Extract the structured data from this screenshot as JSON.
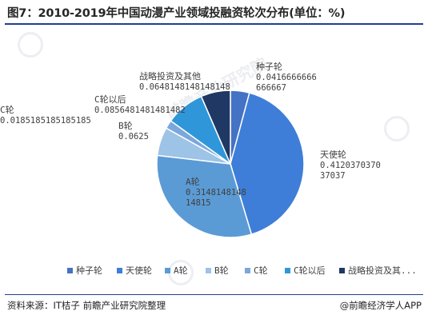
{
  "title": "图7：2010-2019年中国动漫产业领域投融资轮次分布(单位：%)",
  "footer": {
    "source": "资料来源：IT桔子 前瞻产业研究院整理",
    "brand": "@前瞻经济学人APP"
  },
  "watermark": {
    "text": "前瞻产业研究院"
  },
  "chart_data": {
    "type": "pie",
    "title": "图7：2010-2019年中国动漫产业领域投融资轮次分布(单位：%)",
    "legend_position": "bottom",
    "slices": [
      {
        "label": "种子轮",
        "value": 0.0416666666666667,
        "value_text": "0.0416666666666667",
        "color": "#4472c4"
      },
      {
        "label": "天使轮",
        "value": 0.412037037037037,
        "value_text": "0.412037037037037",
        "color": "#3e7ed8"
      },
      {
        "label": "A轮",
        "value": 0.314814814814815,
        "value_text": "0.314814814814815",
        "color": "#5b9bd5"
      },
      {
        "label": "B轮",
        "value": 0.0625,
        "value_text": "0.0625",
        "color": "#9dc3e6"
      },
      {
        "label": "C轮",
        "value": 0.0185185185185185,
        "value_text": "0.0185185185185185",
        "color": "#7ba7dc"
      },
      {
        "label": "C轮以后",
        "value": 0.0856481481481482,
        "value_text": "0.0856481481481482",
        "color": "#2f97d9"
      },
      {
        "label": "战略投资及其他",
        "value": 0.0648148148148148,
        "value_text": "0.0648148148148148",
        "legend_text": "战略投资及其...",
        "color": "#1f3864"
      }
    ]
  }
}
